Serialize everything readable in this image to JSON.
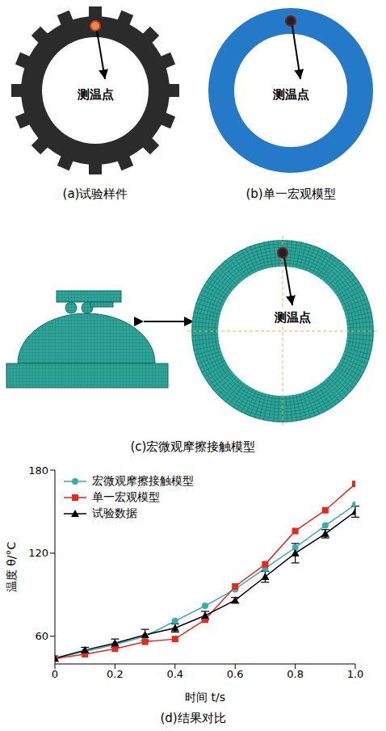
{
  "panels": {
    "a": {
      "caption": "(a)试验样件",
      "label": "测温点"
    },
    "b": {
      "caption": "(b)单一宏观模型",
      "label": "测温点"
    },
    "c": {
      "caption": "(c)宏微观摩擦接触模型",
      "label": "测温点"
    },
    "d": {
      "caption": "(d)结果对比"
    }
  },
  "chart_data": {
    "type": "line",
    "x": [
      0,
      0.1,
      0.2,
      0.3,
      0.4,
      0.5,
      0.6,
      0.7,
      0.8,
      0.9,
      1
    ],
    "xlim": [
      0,
      1
    ],
    "xticks": [
      0,
      0.2,
      0.4,
      0.6,
      0.8,
      {
        "value": 1,
        "label": "1.0"
      }
    ],
    "ylim": [
      40,
      180
    ],
    "yticks": [
      60,
      120,
      180
    ],
    "x_label": "时间 t/s",
    "y_label": "温度 θ/°C",
    "legend": "upper left",
    "grid": false,
    "series": [
      {
        "name": "宏微观摩擦接触模型",
        "color": "#35aeb0",
        "marker": "circle",
        "values": [
          44,
          49,
          54,
          60,
          71,
          82,
          94,
          109,
          124,
          140,
          155
        ]
      },
      {
        "name": "单一宏观模型",
        "color": "#e8281e",
        "marker": "square",
        "values": [
          44,
          47,
          51,
          56,
          58,
          72,
          96,
          112,
          136,
          151,
          170
        ]
      },
      {
        "name": "试验数据",
        "color": "#000000",
        "marker": "triangle",
        "values": [
          44,
          50,
          55,
          61,
          66,
          75,
          86,
          103,
          120,
          134,
          150
        ],
        "error": [
          0,
          2,
          3,
          4,
          3,
          3,
          2,
          4,
          7,
          3,
          4
        ]
      }
    ]
  }
}
